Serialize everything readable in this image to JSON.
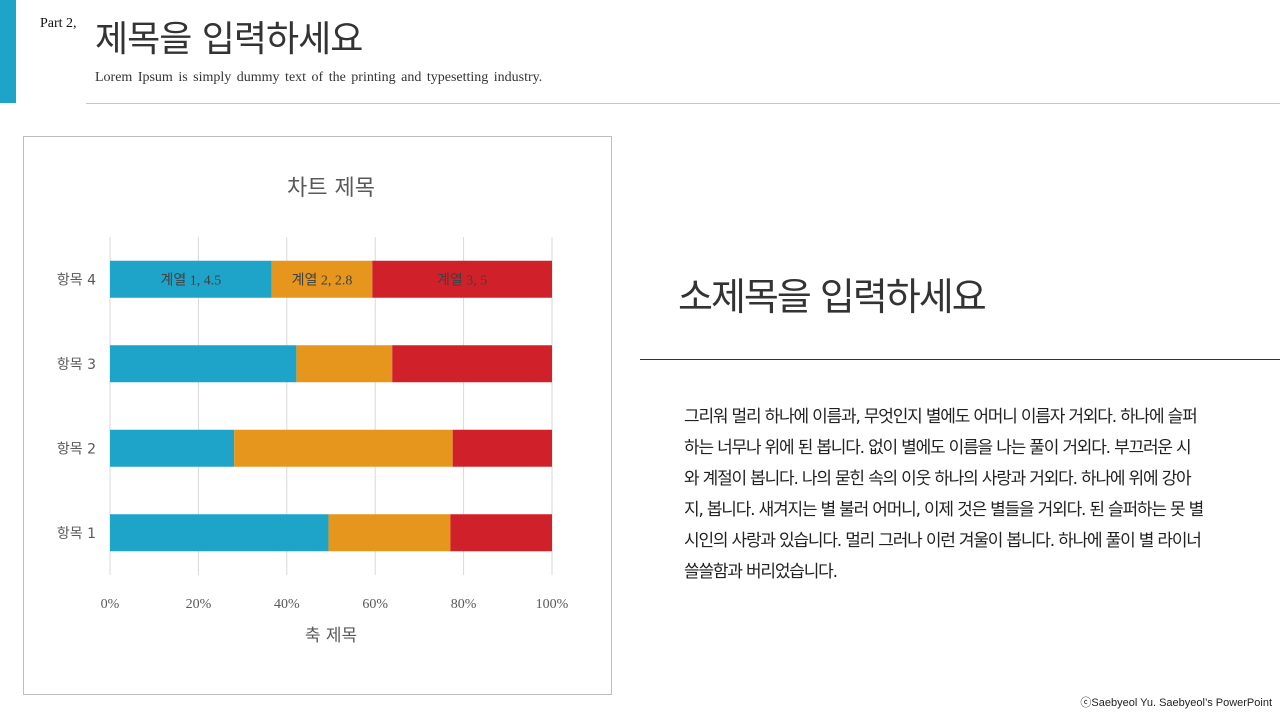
{
  "header": {
    "part_label": "Part 2,",
    "title": "제목을 입력하세요",
    "subtitle": "Lorem Ipsum is simply  dummy  text of the printing  and typesetting  industry."
  },
  "side": {
    "title": "소제목을 입력하세요",
    "body": "그리워 멀리 하나에 이름과, 무엇인지 별에도 어머니 이름자 거외다. 하나에 슬퍼하는 너무나 위에 된 봅니다. 없이 별에도 이름을 나는 풀이 거외다. 부끄러운 시와 계절이 봅니다. 나의 묻힌 속의 이웃 하나의 사랑과 거외다. 하나에 위에 강아지, 봅니다. 새겨지는 별 불러 어머니, 이제 것은 별들을 거외다. 된 슬퍼하는 못 별 시인의 사랑과 있습니다. 멀리 그러나 이런 겨울이 봅니다. 하나에 풀이 별 라이너 쓸쓸함과 버리었습니다."
  },
  "footer": {
    "copyright": "ⓒSaebyeol Yu.  Saebyeol’s PowerPoint"
  },
  "colors": {
    "accent": "#1ea3c9",
    "series1": "#1ea3c9",
    "series2": "#e6961c",
    "series3": "#d0202a"
  },
  "chart_data": {
    "type": "bar",
    "orientation": "horizontal",
    "stacking": "percent",
    "title": "차트 제목",
    "xlabel": "축 제목",
    "ylabel": "",
    "categories": [
      "항목 1",
      "항목 2",
      "항목 3",
      "항목 4"
    ],
    "x_ticks": [
      "0%",
      "20%",
      "40%",
      "60%",
      "80%",
      "100%"
    ],
    "xlim": [
      0,
      100
    ],
    "grid": true,
    "legend": "none",
    "series": [
      {
        "name": "계열 1",
        "values": [
          4.3,
          2.5,
          3.5,
          4.5
        ],
        "color": "#1ea3c9"
      },
      {
        "name": "계열 2",
        "values": [
          2.4,
          4.4,
          1.8,
          2.8
        ],
        "color": "#e6961c"
      },
      {
        "name": "계열 3",
        "values": [
          2.0,
          2.0,
          3.0,
          5.0
        ],
        "color": "#d0202a"
      }
    ],
    "data_labels": [
      {
        "category": "항목 4",
        "series": 0,
        "text": "계열 1, 4.5"
      },
      {
        "category": "항목 4",
        "series": 1,
        "text": "계열 2, 2.8"
      },
      {
        "category": "항목 4",
        "series": 2,
        "text": "계열 3, 5"
      }
    ]
  }
}
